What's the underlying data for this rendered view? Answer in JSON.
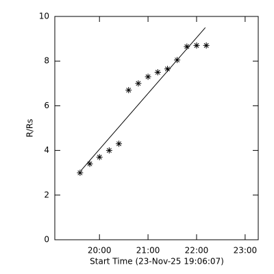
{
  "chart_data": {
    "type": "scatter",
    "xlabel": "Start Time (23-Nov-25 19:06:07)",
    "ylabel": "R/Rs",
    "xlim": [
      19.08,
      23.27
    ],
    "ylim": [
      0,
      10
    ],
    "xticks": [
      {
        "value": 20,
        "label": "20:00"
      },
      {
        "value": 21,
        "label": "21:00"
      },
      {
        "value": 22,
        "label": "22:00"
      },
      {
        "value": 23,
        "label": "23:00"
      }
    ],
    "yticks": [
      0,
      2,
      4,
      6,
      8,
      10
    ],
    "series": [
      {
        "marker": "asterisk",
        "color": "#000000",
        "x": [
          19.6,
          19.8,
          20.0,
          20.2,
          20.4,
          20.6,
          20.8,
          21.0,
          21.2,
          21.4,
          21.6,
          21.8,
          22.0,
          22.2
        ],
        "values": [
          3.0,
          3.4,
          3.7,
          4.0,
          4.3,
          6.7,
          7.0,
          7.3,
          7.5,
          7.65,
          8.05,
          8.65,
          8.7,
          8.7
        ]
      },
      {
        "marker": "line",
        "color": "#000000",
        "x": [
          19.62,
          22.18
        ],
        "values": [
          3.1,
          9.5
        ]
      }
    ]
  }
}
